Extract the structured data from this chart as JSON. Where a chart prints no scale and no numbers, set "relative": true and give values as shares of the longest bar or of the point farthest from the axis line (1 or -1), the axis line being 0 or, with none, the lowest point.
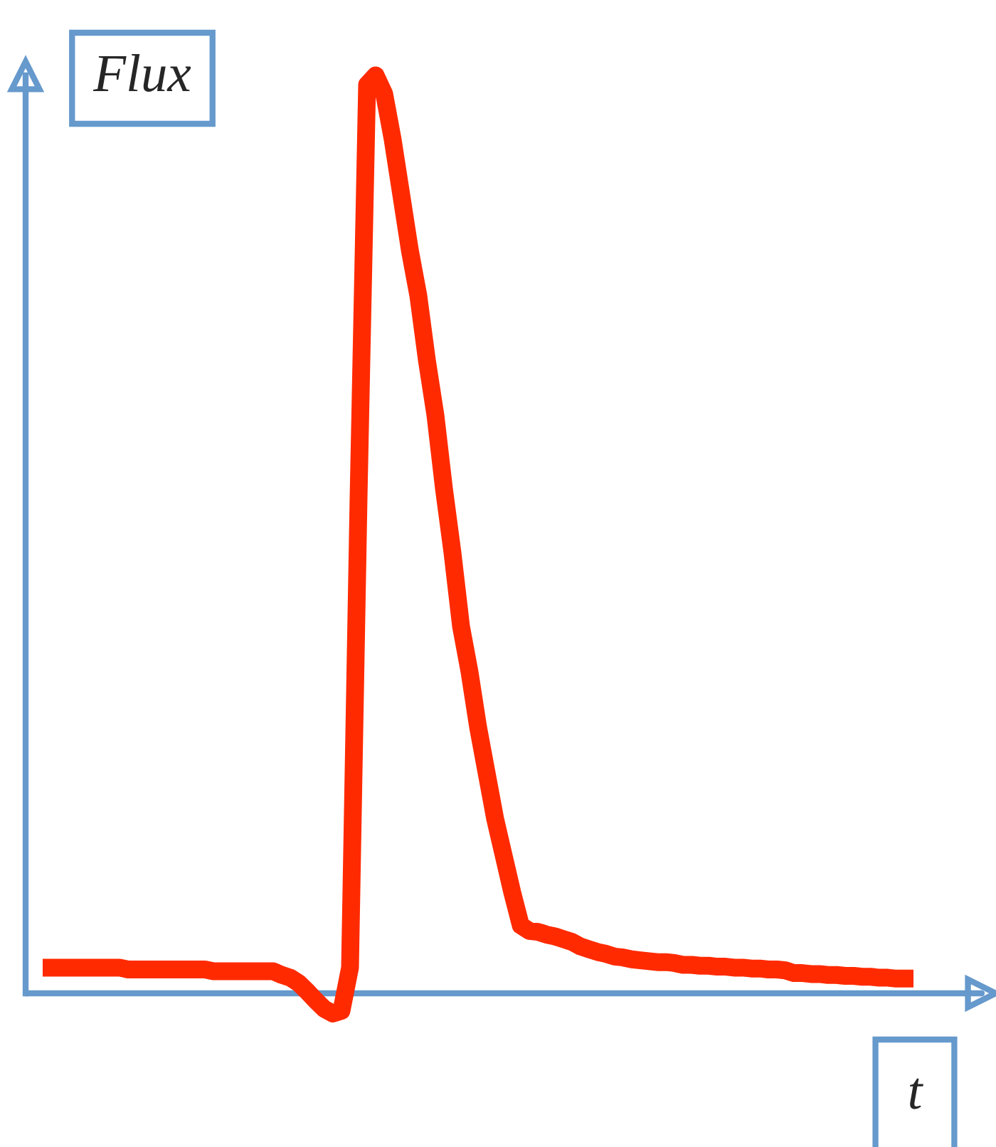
{
  "chart_data": {
    "type": "line",
    "relative": true,
    "xlabel": "t",
    "ylabel": "Flux",
    "grid": false,
    "legend": false,
    "ref_lines": [
      {
        "axis": "y",
        "value": 0,
        "color": "#6699cc"
      }
    ],
    "marker": "none",
    "line_style": "solid",
    "categories": [
      null,
      null,
      null,
      null,
      null,
      null,
      null,
      null,
      null,
      null,
      null,
      null,
      null,
      null,
      null,
      null,
      null,
      null,
      null,
      null,
      null,
      null,
      null,
      null,
      null,
      null,
      null,
      null,
      null,
      null,
      null,
      null,
      null,
      null,
      null,
      null,
      null,
      null,
      null,
      null,
      null,
      null,
      null,
      null,
      null,
      null,
      null,
      null,
      null,
      null,
      null,
      null,
      null,
      null,
      null,
      null,
      null,
      null,
      null,
      null,
      null,
      null,
      null,
      null,
      null,
      null,
      null,
      null,
      null,
      null,
      null,
      null,
      null,
      null,
      null,
      null,
      null,
      null,
      null,
      null,
      null,
      null,
      null,
      null,
      null,
      null,
      null,
      null,
      null,
      null,
      null,
      null,
      null,
      null,
      null,
      null,
      null,
      null,
      null,
      null,
      null,
      null,
      null
    ],
    "series": [
      {
        "color": "#ff2a00",
        "values": [
          0.028,
          0.028,
          0.028,
          0.028,
          0.028,
          0.028,
          0.028,
          0.028,
          0.028,
          0.028,
          0.026,
          0.026,
          0.026,
          0.026,
          0.026,
          0.026,
          0.026,
          0.026,
          0.026,
          0.026,
          0.024,
          0.024,
          0.024,
          0.024,
          0.024,
          0.024,
          0.024,
          0.024,
          0.02,
          0.017,
          0.011,
          0.002,
          -0.008,
          -0.017,
          -0.022,
          -0.019,
          0.028,
          0.54,
          0.99,
          1.0,
          0.98,
          0.93,
          0.87,
          0.81,
          0.76,
          0.69,
          0.63,
          0.55,
          0.48,
          0.4,
          0.35,
          0.29,
          0.24,
          0.19,
          0.15,
          0.11,
          0.074,
          0.068,
          0.067,
          0.064,
          0.062,
          0.059,
          0.056,
          0.051,
          0.048,
          0.045,
          0.043,
          0.04,
          0.039,
          0.037,
          0.036,
          0.035,
          0.034,
          0.034,
          0.033,
          0.031,
          0.031,
          0.03,
          0.03,
          0.029,
          0.029,
          0.028,
          0.028,
          0.027,
          0.027,
          0.026,
          0.026,
          0.025,
          0.022,
          0.022,
          0.021,
          0.021,
          0.02,
          0.02,
          0.019,
          0.019,
          0.018,
          0.018,
          0.017,
          0.017,
          0.016,
          0.016,
          0.016
        ]
      }
    ]
  }
}
